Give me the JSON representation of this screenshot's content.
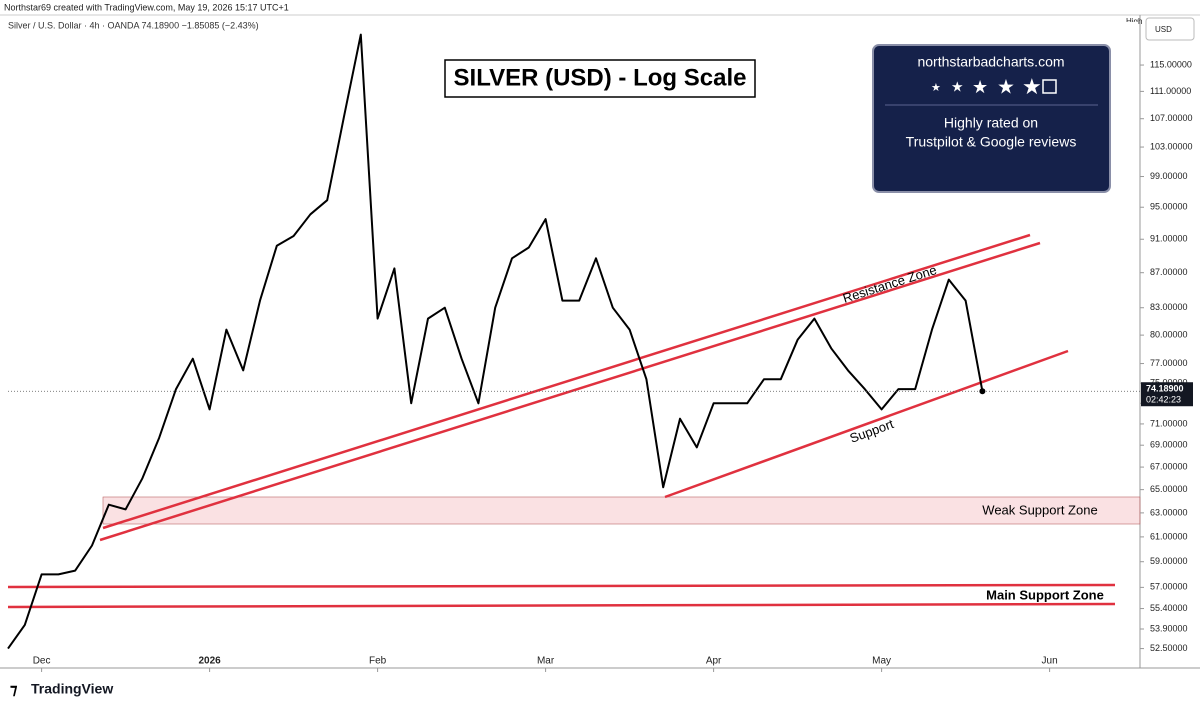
{
  "header": {
    "author_line": "Northstar69 created with TradingView.com, May 19, 2026 15:17 UTC+1",
    "symbol_line": "Silver / U.S. Dollar · 4h · OANDA  74.18900  −1.85085 (−2.43%)",
    "currency": "USD",
    "scale_mode": "High"
  },
  "ad": {
    "site": "northstarbadcharts.com",
    "line1": "Highly rated on",
    "line2": "Trustpilot & Google reviews"
  },
  "footer": {
    "brand": "TradingView"
  },
  "chart_data": {
    "type": "line",
    "title": "SILVER (USD) - Log Scale",
    "log_scale": true,
    "grid": false,
    "categories": [
      null,
      null,
      "Dec",
      null,
      null,
      null,
      null,
      null,
      null,
      null,
      null,
      null,
      "2026",
      null,
      null,
      null,
      null,
      null,
      null,
      null,
      null,
      null,
      "Feb",
      null,
      null,
      null,
      null,
      null,
      null,
      null,
      null,
      null,
      "Mar",
      null,
      null,
      null,
      null,
      null,
      null,
      null,
      null,
      null,
      "Apr",
      null,
      null,
      null,
      null,
      null,
      null,
      null,
      null,
      null,
      "May",
      null,
      null,
      null,
      null,
      null,
      null,
      null,
      null,
      null,
      "Jun",
      null,
      null,
      null,
      null,
      null
    ],
    "series": [
      {
        "name": "Silver / U.S. Dollar",
        "color": "#000000",
        "values": [
          52.5,
          54.2,
          58.0,
          58.0,
          58.3,
          60.3,
          63.7,
          63.3,
          66.0,
          69.7,
          74.4,
          77.5,
          72.4,
          80.6,
          76.3,
          83.8,
          90.2,
          91.4,
          94.1,
          95.9,
          107.3,
          119.8,
          81.8,
          87.5,
          73.0,
          81.8,
          83.0,
          77.5,
          73.0,
          83.0,
          88.7,
          90.0,
          93.5,
          83.8,
          83.8,
          88.7,
          83.0,
          80.6,
          75.4,
          65.2,
          71.5,
          68.8,
          73.0,
          73.0,
          73.0,
          75.4,
          75.4,
          79.5,
          81.8,
          78.6,
          76.3,
          74.4,
          72.4,
          74.4,
          74.4,
          80.6,
          86.2,
          83.8,
          74.189,
          null,
          null,
          null,
          null,
          null,
          null,
          null,
          null,
          null
        ]
      }
    ],
    "last_price": {
      "value": 74.189,
      "label": "74.18900",
      "countdown": "02:42:23"
    },
    "ylim": [
      51.7,
      123
    ],
    "yticks": [
      {
        "value": 52.5,
        "label": "52.50000"
      },
      {
        "value": 53.9,
        "label": "53.90000"
      },
      {
        "value": 55.4,
        "label": "55.40000"
      },
      {
        "value": 57,
        "label": "57.00000"
      },
      {
        "value": 59,
        "label": "59.00000"
      },
      {
        "value": 61,
        "label": "61.00000"
      },
      {
        "value": 63,
        "label": "63.00000"
      },
      {
        "value": 65,
        "label": "65.00000"
      },
      {
        "value": 67,
        "label": "67.00000"
      },
      {
        "value": 69,
        "label": "69.00000"
      },
      {
        "value": 71,
        "label": "71.00000"
      },
      {
        "value": 73,
        "label": "73.00000"
      },
      {
        "value": 75,
        "label": "75.00000"
      },
      {
        "value": 77,
        "label": "77.00000"
      },
      {
        "value": 80,
        "label": "80.00000"
      },
      {
        "value": 83,
        "label": "83.00000"
      },
      {
        "value": 87,
        "label": "87.00000"
      },
      {
        "value": 91,
        "label": "91.00000"
      },
      {
        "value": 95,
        "label": "95.00000"
      },
      {
        "value": 99,
        "label": "99.00000"
      },
      {
        "value": 103,
        "label": "103.00000"
      },
      {
        "value": 107,
        "label": "107.00000"
      },
      {
        "value": 111,
        "label": "111.00000"
      },
      {
        "value": 115,
        "label": "115.00000"
      }
    ],
    "annotations": {
      "resistance": "Resistance Zone",
      "support": "Support",
      "weak_zone": "Weak Support Zone",
      "main_zone": "Main Support Zone"
    }
  }
}
